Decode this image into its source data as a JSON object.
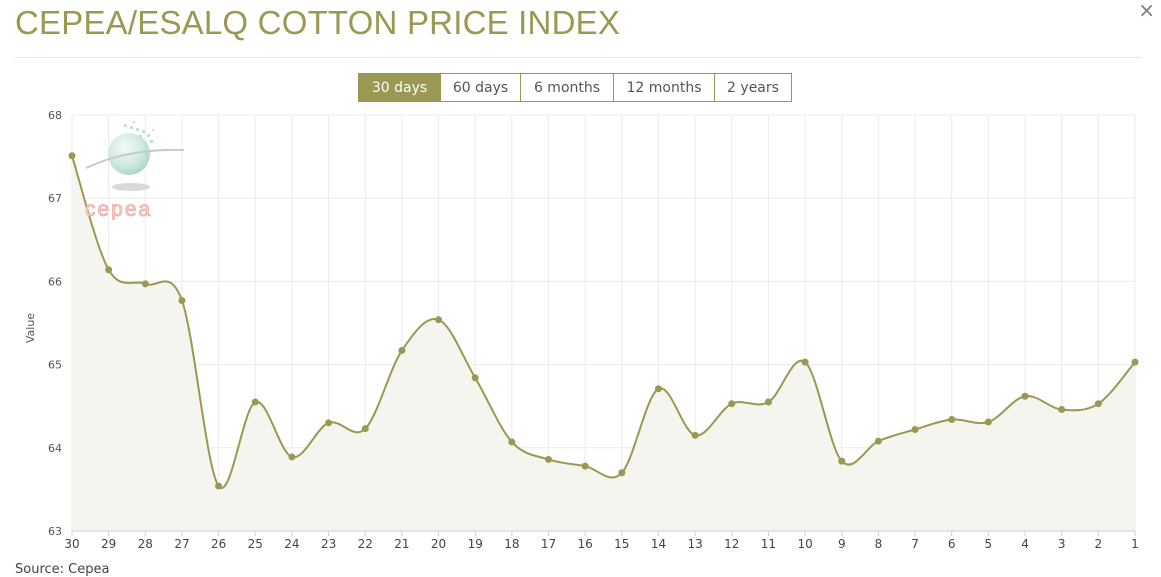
{
  "page": {
    "title": "CEPEA/ESALQ COTTON PRICE INDEX",
    "close_symbol": "×",
    "source": "Source: Cepea",
    "logo_text": "cepea",
    "accent_color": "#9a9853"
  },
  "tabs": [
    {
      "label": "30 days",
      "active": true
    },
    {
      "label": "60 days",
      "active": false
    },
    {
      "label": "6 months",
      "active": false
    },
    {
      "label": "12 months",
      "active": false
    },
    {
      "label": "2 years",
      "active": false
    }
  ],
  "chart_data": {
    "type": "area",
    "title": "",
    "xlabel": "",
    "ylabel": "Value",
    "ylim": [
      63,
      68
    ],
    "yticks": [
      63,
      64,
      65,
      66,
      67,
      68
    ],
    "grid": true,
    "categories": [
      "30",
      "29",
      "28",
      "27",
      "26",
      "25",
      "24",
      "23",
      "22",
      "21",
      "20",
      "19",
      "18",
      "17",
      "16",
      "15",
      "14",
      "13",
      "12",
      "11",
      "10",
      "9",
      "8",
      "7",
      "6",
      "5",
      "4",
      "3",
      "2",
      "1"
    ],
    "series": [
      {
        "values": [
          67.51,
          66.14,
          65.97,
          65.77,
          63.54,
          64.55,
          63.89,
          64.3,
          64.23,
          65.17,
          65.54,
          64.84,
          64.07,
          63.86,
          63.78,
          63.7,
          64.71,
          64.15,
          64.53,
          64.55,
          65.03,
          63.84,
          64.08,
          64.22,
          64.34,
          64.31,
          64.62,
          64.46,
          64.53,
          65.03
        ]
      }
    ],
    "colors": {
      "line": "#9a9853",
      "fill": "#f5f5f0",
      "grid": "#ebebeb"
    }
  }
}
